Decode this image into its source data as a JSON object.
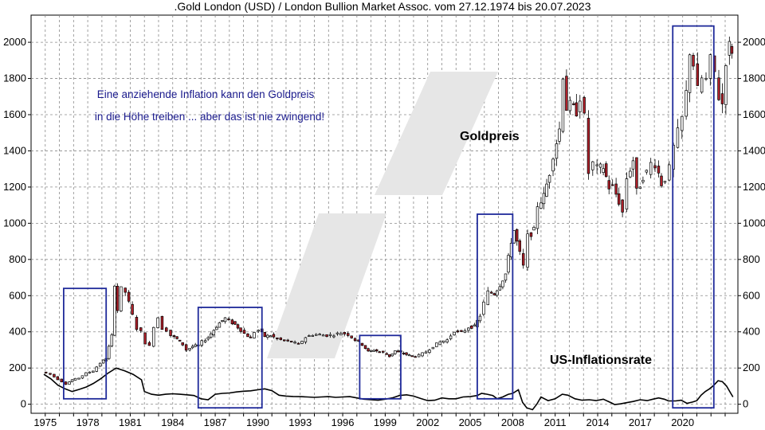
{
  "chart_data": {
    "type": "candlestick",
    "title": ".Gold London (USD) / London Bullion Market Assoc. vom 27.12.1974 bis 20.07.2023",
    "annotation": {
      "line1": "Eine anziehende Inflation kann den Goldpreis",
      "line2": "in die Höhe treiben ... aber das ist nie zwingend!"
    },
    "series_labels": {
      "gold": "Goldpreis",
      "inflation": "US-Inflationsrate"
    },
    "colors": {
      "up_candle": "#ffffff",
      "down_candle": "#b0202a",
      "candle_outline": "#000000",
      "highlight_box": "#1f2a9a",
      "watermark": "#e6e6e6"
    },
    "x_range": [
      1974.0,
      2023.9
    ],
    "y_range": [
      -50,
      2150
    ],
    "grid": true,
    "x_ticks": [
      "1975",
      "1978",
      "1981",
      "1984",
      "1987",
      "1990",
      "1993",
      "1996",
      "1999",
      "2002",
      "2005",
      "2008",
      "2011",
      "2014",
      "2017",
      "2020"
    ],
    "y_ticks_left": [
      "0",
      "200",
      "400",
      "600",
      "800",
      "1000",
      "1200",
      "1400",
      "1600",
      "1800",
      "2000"
    ],
    "y_ticks_right": [
      "0",
      "200",
      "400",
      "600",
      "800",
      "1000",
      "1200",
      "1400",
      "1600",
      "1800",
      "2000"
    ],
    "gold_series": [
      [
        1974.9,
        178
      ],
      [
        1975.5,
        165
      ],
      [
        1976.0,
        138
      ],
      [
        1976.6,
        112
      ],
      [
        1977.0,
        135
      ],
      [
        1977.5,
        145
      ],
      [
        1978.0,
        172
      ],
      [
        1978.5,
        185
      ],
      [
        1979.0,
        228
      ],
      [
        1979.4,
        255
      ],
      [
        1979.8,
        380
      ],
      [
        1980.0,
        660
      ],
      [
        1980.2,
        520
      ],
      [
        1980.5,
        640
      ],
      [
        1980.8,
        620
      ],
      [
        1981.0,
        560
      ],
      [
        1981.3,
        490
      ],
      [
        1981.6,
        420
      ],
      [
        1981.9,
        400
      ],
      [
        1982.2,
        340
      ],
      [
        1982.5,
        320
      ],
      [
        1982.8,
        430
      ],
      [
        1983.1,
        480
      ],
      [
        1983.4,
        420
      ],
      [
        1983.7,
        410
      ],
      [
        1984.0,
        380
      ],
      [
        1984.4,
        360
      ],
      [
        1984.8,
        330
      ],
      [
        1985.1,
        300
      ],
      [
        1985.5,
        320
      ],
      [
        1985.9,
        325
      ],
      [
        1986.2,
        345
      ],
      [
        1986.6,
        370
      ],
      [
        1987.0,
        410
      ],
      [
        1987.4,
        450
      ],
      [
        1987.8,
        475
      ],
      [
        1988.1,
        460
      ],
      [
        1988.5,
        440
      ],
      [
        1988.9,
        410
      ],
      [
        1989.2,
        390
      ],
      [
        1989.6,
        365
      ],
      [
        1989.9,
        400
      ],
      [
        1990.2,
        410
      ],
      [
        1990.6,
        375
      ],
      [
        1991.0,
        380
      ],
      [
        1991.5,
        360
      ],
      [
        1992.0,
        350
      ],
      [
        1992.5,
        345
      ],
      [
        1993.0,
        330
      ],
      [
        1993.5,
        370
      ],
      [
        1994.0,
        385
      ],
      [
        1994.5,
        385
      ],
      [
        1995.0,
        380
      ],
      [
        1995.5,
        385
      ],
      [
        1996.0,
        395
      ],
      [
        1996.5,
        385
      ],
      [
        1997.0,
        355
      ],
      [
        1997.5,
        330
      ],
      [
        1997.9,
        290
      ],
      [
        1998.3,
        300
      ],
      [
        1998.7,
        290
      ],
      [
        1999.0,
        285
      ],
      [
        1999.4,
        265
      ],
      [
        1999.8,
        295
      ],
      [
        2000.2,
        285
      ],
      [
        2000.6,
        275
      ],
      [
        2001.0,
        265
      ],
      [
        2001.5,
        270
      ],
      [
        2002.0,
        290
      ],
      [
        2002.5,
        320
      ],
      [
        2003.0,
        345
      ],
      [
        2003.5,
        355
      ],
      [
        2004.0,
        405
      ],
      [
        2004.5,
        395
      ],
      [
        2005.0,
        425
      ],
      [
        2005.4,
        430
      ],
      [
        2005.8,
        490
      ],
      [
        2006.1,
        560
      ],
      [
        2006.4,
        620
      ],
      [
        2006.8,
        610
      ],
      [
        2007.2,
        660
      ],
      [
        2007.6,
        720
      ],
      [
        2008.0,
        900
      ],
      [
        2008.2,
        960
      ],
      [
        2008.6,
        830
      ],
      [
        2008.9,
        760
      ],
      [
        2009.2,
        930
      ],
      [
        2009.6,
        960
      ],
      [
        2009.9,
        1100
      ],
      [
        2010.3,
        1150
      ],
      [
        2010.7,
        1280
      ],
      [
        2011.0,
        1380
      ],
      [
        2011.4,
        1520
      ],
      [
        2011.7,
        1820
      ],
      [
        2011.9,
        1640
      ],
      [
        2012.2,
        1650
      ],
      [
        2012.6,
        1620
      ],
      [
        2012.9,
        1700
      ],
      [
        2013.2,
        1580
      ],
      [
        2013.5,
        1280
      ],
      [
        2013.8,
        1330
      ],
      [
        2014.1,
        1300
      ],
      [
        2014.5,
        1310
      ],
      [
        2014.9,
        1200
      ],
      [
        2015.2,
        1200
      ],
      [
        2015.6,
        1120
      ],
      [
        2015.9,
        1060
      ],
      [
        2016.2,
        1250
      ],
      [
        2016.6,
        1350
      ],
      [
        2016.9,
        1170
      ],
      [
        2017.3,
        1260
      ],
      [
        2017.6,
        1280
      ],
      [
        2017.9,
        1330
      ],
      [
        2018.2,
        1330
      ],
      [
        2018.6,
        1220
      ],
      [
        2018.9,
        1250
      ],
      [
        2019.2,
        1300
      ],
      [
        2019.5,
        1420
      ],
      [
        2019.8,
        1500
      ],
      [
        2020.1,
        1580
      ],
      [
        2020.4,
        1720
      ],
      [
        2020.6,
        1950
      ],
      [
        2020.9,
        1880
      ],
      [
        2021.2,
        1730
      ],
      [
        2021.5,
        1800
      ],
      [
        2021.8,
        1790
      ],
      [
        2022.1,
        1900
      ],
      [
        2022.4,
        1830
      ],
      [
        2022.7,
        1700
      ],
      [
        2022.9,
        1660
      ],
      [
        2023.2,
        1900
      ],
      [
        2023.4,
        1980
      ],
      [
        2023.55,
        1960
      ]
    ],
    "inflation_series": [
      [
        1974.9,
        165
      ],
      [
        1975.4,
        140
      ],
      [
        1975.9,
        105
      ],
      [
        1976.4,
        85
      ],
      [
        1976.9,
        70
      ],
      [
        1977.4,
        82
      ],
      [
        1977.9,
        95
      ],
      [
        1978.4,
        115
      ],
      [
        1978.9,
        140
      ],
      [
        1979.4,
        170
      ],
      [
        1980.0,
        200
      ],
      [
        1980.6,
        185
      ],
      [
        1981.2,
        165
      ],
      [
        1981.8,
        135
      ],
      [
        1982.0,
        70
      ],
      [
        1982.5,
        55
      ],
      [
        1983.0,
        50
      ],
      [
        1983.5,
        55
      ],
      [
        1984.0,
        58
      ],
      [
        1984.5,
        55
      ],
      [
        1985.0,
        52
      ],
      [
        1985.5,
        48
      ],
      [
        1986.0,
        30
      ],
      [
        1986.5,
        25
      ],
      [
        1987.0,
        55
      ],
      [
        1987.5,
        60
      ],
      [
        1988.0,
        62
      ],
      [
        1988.5,
        68
      ],
      [
        1989.0,
        72
      ],
      [
        1989.5,
        74
      ],
      [
        1990.0,
        80
      ],
      [
        1990.5,
        85
      ],
      [
        1991.0,
        75
      ],
      [
        1991.5,
        50
      ],
      [
        1992.0,
        45
      ],
      [
        1992.5,
        43
      ],
      [
        1993.0,
        42
      ],
      [
        1993.5,
        40
      ],
      [
        1994.0,
        38
      ],
      [
        1994.5,
        40
      ],
      [
        1995.0,
        42
      ],
      [
        1995.5,
        38
      ],
      [
        1996.0,
        40
      ],
      [
        1996.5,
        42
      ],
      [
        1997.0,
        35
      ],
      [
        1997.5,
        28
      ],
      [
        1998.0,
        25
      ],
      [
        1998.5,
        22
      ],
      [
        1999.0,
        28
      ],
      [
        1999.5,
        35
      ],
      [
        2000.0,
        48
      ],
      [
        2000.5,
        52
      ],
      [
        2001.0,
        45
      ],
      [
        2001.5,
        32
      ],
      [
        2002.0,
        20
      ],
      [
        2002.5,
        22
      ],
      [
        2003.0,
        35
      ],
      [
        2003.5,
        30
      ],
      [
        2004.0,
        30
      ],
      [
        2004.5,
        40
      ],
      [
        2005.0,
        42
      ],
      [
        2005.5,
        48
      ],
      [
        2005.8,
        60
      ],
      [
        2006.2,
        55
      ],
      [
        2006.6,
        48
      ],
      [
        2006.9,
        30
      ],
      [
        2007.3,
        40
      ],
      [
        2007.7,
        55
      ],
      [
        2008.0,
        60
      ],
      [
        2008.4,
        80
      ],
      [
        2008.7,
        10
      ],
      [
        2009.0,
        -20
      ],
      [
        2009.4,
        -30
      ],
      [
        2009.7,
        0
      ],
      [
        2010.0,
        40
      ],
      [
        2010.5,
        20
      ],
      [
        2011.0,
        30
      ],
      [
        2011.5,
        55
      ],
      [
        2011.9,
        50
      ],
      [
        2012.4,
        30
      ],
      [
        2012.9,
        22
      ],
      [
        2013.4,
        25
      ],
      [
        2013.9,
        20
      ],
      [
        2014.4,
        28
      ],
      [
        2014.9,
        10
      ],
      [
        2015.2,
        -2
      ],
      [
        2015.6,
        2
      ],
      [
        2016.0,
        8
      ],
      [
        2016.5,
        15
      ],
      [
        2017.0,
        25
      ],
      [
        2017.5,
        20
      ],
      [
        2017.9,
        28
      ],
      [
        2018.3,
        35
      ],
      [
        2018.7,
        28
      ],
      [
        2019.0,
        18
      ],
      [
        2019.5,
        18
      ],
      [
        2019.9,
        22
      ],
      [
        2020.3,
        5
      ],
      [
        2020.7,
        12
      ],
      [
        2021.0,
        20
      ],
      [
        2021.3,
        50
      ],
      [
        2021.6,
        70
      ],
      [
        2021.9,
        85
      ],
      [
        2022.2,
        105
      ],
      [
        2022.5,
        130
      ],
      [
        2022.8,
        125
      ],
      [
        2023.1,
        100
      ],
      [
        2023.4,
        60
      ],
      [
        2023.55,
        40
      ]
    ],
    "highlight_boxes": [
      {
        "x0": 1976.3,
        "x1": 1979.3,
        "y0": 30,
        "y1": 640
      },
      {
        "x0": 1985.8,
        "x1": 1990.3,
        "y0": -20,
        "y1": 535
      },
      {
        "x0": 1997.2,
        "x1": 2000.1,
        "y0": 30,
        "y1": 380
      },
      {
        "x0": 2005.5,
        "x1": 2008.0,
        "y0": 30,
        "y1": 1050
      },
      {
        "x0": 2019.3,
        "x1": 2022.2,
        "y0": -20,
        "y1": 2090
      }
    ]
  }
}
